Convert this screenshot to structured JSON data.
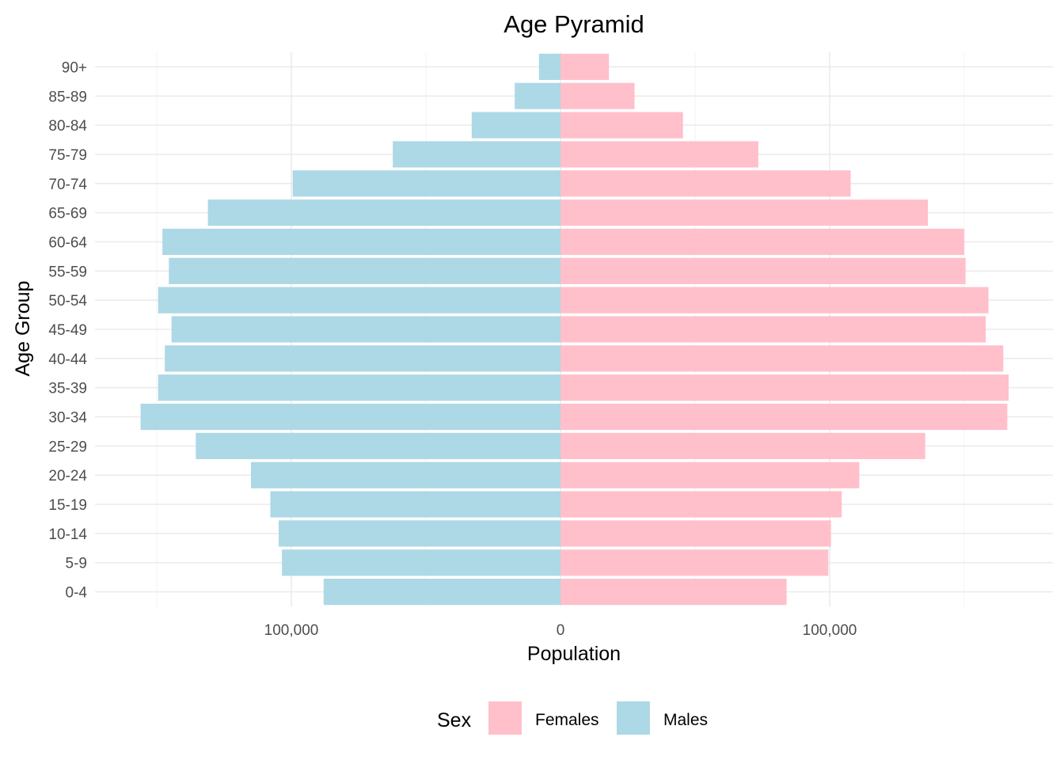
{
  "chart_data": {
    "type": "bar",
    "orientation": "horizontal",
    "title": "Age Pyramid",
    "xlabel": "Population",
    "ylabel": "Age Group",
    "categories": [
      "0-4",
      "5-9",
      "10-14",
      "15-19",
      "20-24",
      "25-29",
      "30-34",
      "35-39",
      "40-44",
      "45-49",
      "50-54",
      "55-59",
      "60-64",
      "65-69",
      "70-74",
      "75-79",
      "80-84",
      "85-89",
      "90+"
    ],
    "series": [
      {
        "name": "Females",
        "color": "#FFC0CB",
        "values": [
          84000,
          99500,
          100500,
          104500,
          111000,
          135500,
          166000,
          166500,
          164500,
          158000,
          159000,
          150500,
          150000,
          136500,
          107800,
          73500,
          45500,
          27500,
          18000
        ]
      },
      {
        "name": "Males",
        "color": "#ADD8E6",
        "values": [
          -88000,
          -103500,
          -104700,
          -107800,
          -115000,
          -135500,
          -156000,
          -149500,
          -147000,
          -144500,
          -149500,
          -145500,
          -147900,
          -131000,
          -99500,
          -62300,
          -33000,
          -17000,
          -8000
        ]
      }
    ],
    "xlim": [
      -175000,
      178000
    ],
    "x_ticks": [
      -100000,
      0,
      100000
    ],
    "x_tick_labels": [
      "100,000",
      "0",
      "100,000"
    ],
    "x_minor_ticks": [
      -150000,
      -50000,
      50000,
      150000
    ],
    "grid": true,
    "legend": {
      "title": "Sex",
      "position": "bottom",
      "entries": [
        {
          "label": "Females",
          "color": "#FFC0CB"
        },
        {
          "label": "Males",
          "color": "#ADD8E6"
        }
      ]
    }
  }
}
